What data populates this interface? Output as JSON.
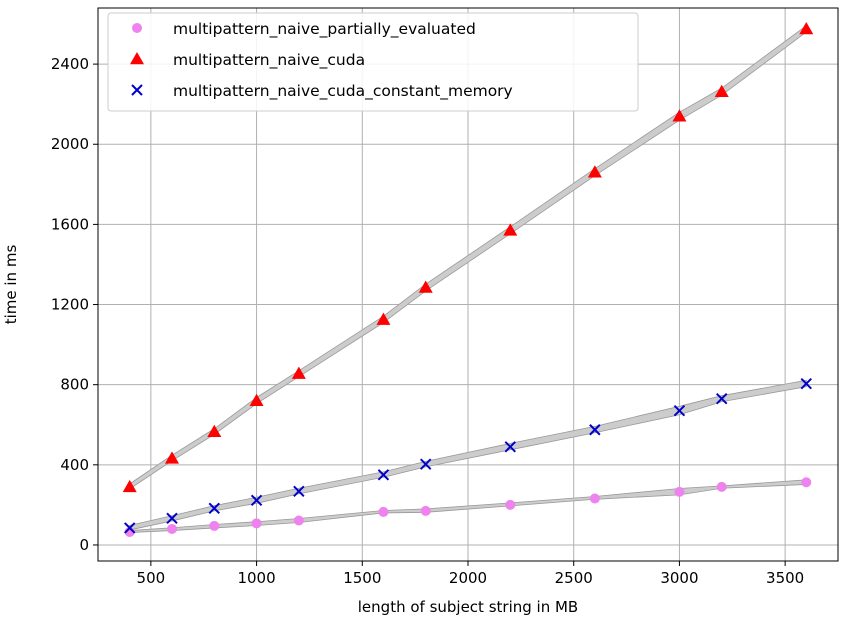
{
  "chart_data": {
    "type": "scatter",
    "title": "",
    "xlabel": "length of subject string in MB",
    "ylabel": "time in ms",
    "xlim": [
      250,
      3750
    ],
    "ylim": [
      -80,
      2680
    ],
    "xticks": [
      500,
      1000,
      1500,
      2000,
      2500,
      3000,
      3500
    ],
    "yticks": [
      0,
      400,
      800,
      1200,
      1600,
      2000,
      2400
    ],
    "grid": true,
    "legend_position": "top-left",
    "band_color": "#cccccc",
    "series": [
      {
        "name": "multipattern_naive_partially_evaluated",
        "marker": "circle",
        "color": "#ee82ee",
        "x": [
          400,
          600,
          800,
          1000,
          1200,
          1600,
          1800,
          2200,
          2600,
          3000,
          3200,
          3600
        ],
        "y": [
          65,
          80,
          95,
          108,
          122,
          165,
          170,
          200,
          232,
          265,
          290,
          313
        ],
        "band_lower": [
          62,
          72,
          85,
          97,
          112,
          160,
          163,
          195,
          228,
          250,
          283,
          302
        ],
        "band_upper": [
          72,
          86,
          102,
          116,
          132,
          172,
          180,
          210,
          242,
          282,
          295,
          325
        ]
      },
      {
        "name": "multipattern_naive_cuda",
        "marker": "triangle",
        "color": "#ff0000",
        "x": [
          400,
          600,
          800,
          1000,
          1200,
          1600,
          1800,
          2200,
          2600,
          3000,
          3200,
          3600
        ],
        "y": [
          290,
          432,
          565,
          720,
          855,
          1125,
          1285,
          1570,
          1860,
          2140,
          2262,
          2575
        ],
        "band_lower": [
          280,
          420,
          552,
          705,
          840,
          1110,
          1268,
          1553,
          1843,
          2120,
          2245,
          2560
        ],
        "band_upper": [
          305,
          448,
          580,
          736,
          870,
          1142,
          1302,
          1588,
          1878,
          2160,
          2280,
          2592
        ]
      },
      {
        "name": "multipattern_naive_cuda_constant_memory",
        "marker": "x",
        "color": "#0000cc",
        "x": [
          400,
          600,
          800,
          1000,
          1200,
          1600,
          1800,
          2200,
          2600,
          3000,
          3200,
          3600
        ],
        "y": [
          85,
          133,
          183,
          223,
          268,
          350,
          403,
          490,
          575,
          670,
          730,
          805
        ],
        "band_lower": [
          75,
          120,
          170,
          208,
          255,
          338,
          390,
          475,
          560,
          650,
          715,
          790
        ],
        "band_upper": [
          98,
          146,
          196,
          238,
          283,
          365,
          417,
          507,
          592,
          692,
          745,
          822
        ]
      }
    ]
  }
}
